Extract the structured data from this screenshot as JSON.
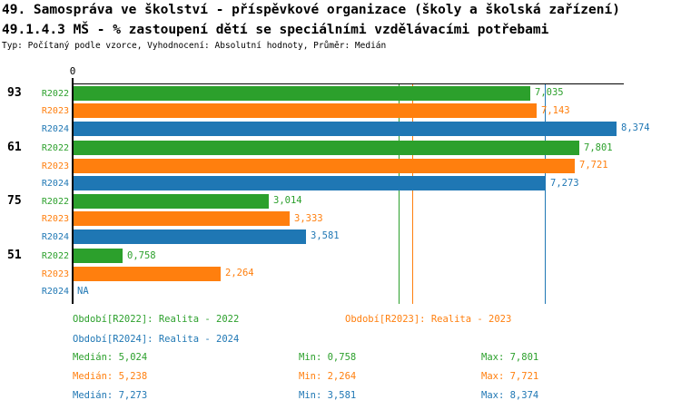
{
  "header": {
    "title_line1": "49. Samospráva ve školství - příspěvkové organizace (školy a školská zařízení)",
    "title_line2": "49.1.4.3 MŠ - % zastoupení dětí se speciálními vzdělávacími potřebami",
    "meta": "Typ: Počítaný podle vzorce, Vyhodnocení: Absolutní hodnoty, Průměr: Medián"
  },
  "colors": {
    "r2022_green": "#2ca02c",
    "r2023_orange": "#ff7f0e",
    "r2024_blue": "#1f77b4",
    "axis_black": "#000000",
    "background": "#ffffff"
  },
  "chart_data": {
    "type": "bar",
    "orientation": "horizontal",
    "title": "49.1.4.3 MŠ - % zastoupení dětí se speciálními vzdělávacími potřebami",
    "axis_tick_label": "0",
    "xlim": [
      0,
      8.48
    ],
    "grid": false,
    "categories": [
      "93",
      "61",
      "75",
      "51"
    ],
    "series": [
      {
        "name": "R2022",
        "color": "#2ca02c",
        "values": [
          7.035,
          7.801,
          3.014,
          0.758
        ],
        "labels": [
          "7,035",
          "7,801",
          "3,014",
          "0,758"
        ]
      },
      {
        "name": "R2023",
        "color": "#ff7f0e",
        "values": [
          7.143,
          7.721,
          3.333,
          2.264
        ],
        "labels": [
          "7,143",
          "7,721",
          "3,333",
          "2,264"
        ]
      },
      {
        "name": "R2024",
        "color": "#1f77b4",
        "values": [
          8.374,
          7.273,
          3.581,
          null
        ],
        "labels": [
          "8,374",
          "7,273",
          "3,581",
          "NA"
        ]
      }
    ],
    "median_lines": [
      {
        "series": "R2022",
        "value": 5.024,
        "color": "#2ca02c"
      },
      {
        "series": "R2023",
        "value": 5.238,
        "color": "#ff7f0e"
      },
      {
        "series": "R2024",
        "value": 7.273,
        "color": "#1f77b4"
      }
    ]
  },
  "legend": {
    "r2022": "Období[R2022]: Realita - 2022",
    "r2023": "Období[R2023]: Realita - 2023",
    "r2024": "Období[R2024]: Realita - 2024"
  },
  "stats": [
    {
      "median": "Medián: 5,024",
      "min": "Min: 0,758",
      "max": "Max: 7,801"
    },
    {
      "median": "Medián: 5,238",
      "min": "Min: 2,264",
      "max": "Max: 7,721"
    },
    {
      "median": "Medián: 7,273",
      "min": "Min: 3,581",
      "max": "Max: 8,374"
    }
  ]
}
